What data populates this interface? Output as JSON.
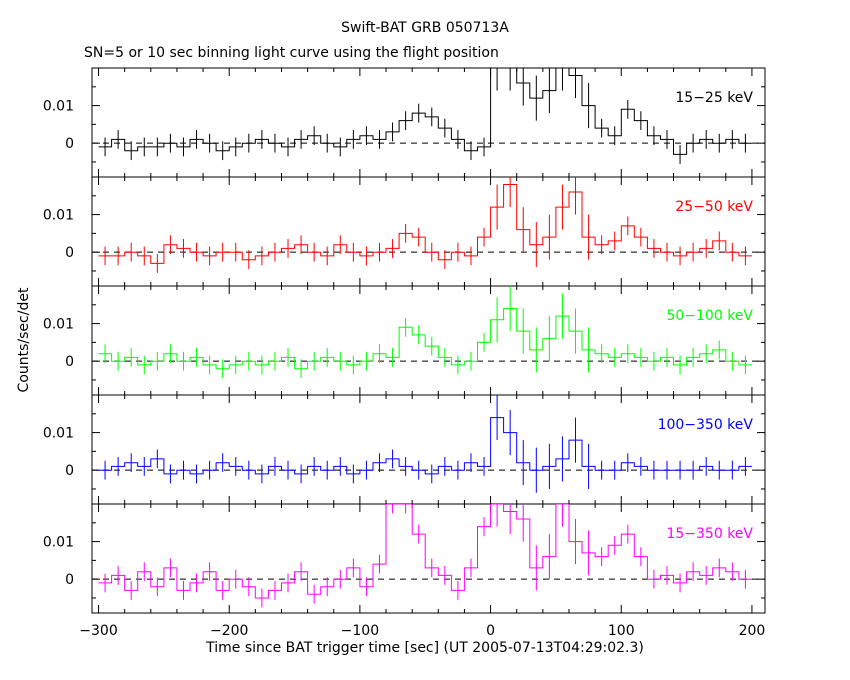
{
  "header": {
    "title": "Swift-BAT GRB 050713A",
    "subtitle": "SN=5 or 10 sec binning light curve using the flight position"
  },
  "axes": {
    "ylabel": "Counts/sec/det",
    "xlabel": "Time since BAT trigger time [sec] (UT 2005-07-13T04:29:02.3)"
  },
  "chart_data": {
    "type": "line",
    "title": "Swift-BAT GRB 050713A",
    "subtitle": "SN=5 or 10 sec binning light curve using the flight position",
    "xlabel": "Time since BAT trigger time [sec] (UT 2005-07-13T04:29:02.3)",
    "ylabel": "Counts/sec/det",
    "xlim": [
      -305,
      210
    ],
    "x_ticks": [
      -300,
      -200,
      -100,
      0,
      100,
      200
    ],
    "y_ticks": [
      0,
      0.01
    ],
    "zero_line": "dashed",
    "panels": [
      {
        "name": "15−25 keV",
        "color": "#000000",
        "ylim": [
          -0.009,
          0.02
        ],
        "bins": [
          [
            -295,
            -0.001
          ],
          [
            -285,
            0.001
          ],
          [
            -275,
            -0.002
          ],
          [
            -265,
            -0.001
          ],
          [
            -255,
            -0.001
          ],
          [
            -245,
            0.0
          ],
          [
            -235,
            -0.001
          ],
          [
            -225,
            0.001
          ],
          [
            -215,
            0.0
          ],
          [
            -205,
            -0.002
          ],
          [
            -195,
            -0.001
          ],
          [
            -185,
            0.0
          ],
          [
            -175,
            0.001
          ],
          [
            -165,
            0.0
          ],
          [
            -155,
            -0.001
          ],
          [
            -145,
            0.001
          ],
          [
            -135,
            0.002
          ],
          [
            -125,
            0.0
          ],
          [
            -115,
            -0.001
          ],
          [
            -105,
            0.001
          ],
          [
            -95,
            0.002
          ],
          [
            -85,
            0.001
          ],
          [
            -75,
            0.003
          ],
          [
            -65,
            0.006
          ],
          [
            -55,
            0.008
          ],
          [
            -45,
            0.007
          ],
          [
            -35,
            0.004
          ],
          [
            -25,
            0.001
          ],
          [
            -15,
            -0.002
          ],
          [
            -5,
            -0.001
          ],
          [
            5,
            0.02
          ],
          [
            15,
            0.02
          ],
          [
            25,
            0.016
          ],
          [
            35,
            0.012
          ],
          [
            45,
            0.014
          ],
          [
            55,
            0.02
          ],
          [
            65,
            0.018
          ],
          [
            75,
            0.01
          ],
          [
            85,
            0.004
          ],
          [
            95,
            0.002
          ],
          [
            105,
            0.009
          ],
          [
            115,
            0.006
          ],
          [
            125,
            0.002
          ],
          [
            135,
            0.001
          ],
          [
            145,
            -0.003
          ],
          [
            155,
            0.0
          ],
          [
            165,
            0.001
          ],
          [
            175,
            0.0
          ],
          [
            185,
            0.001
          ],
          [
            195,
            0.0
          ]
        ]
      },
      {
        "name": "25−50 keV",
        "color": "#ff0000",
        "ylim": [
          -0.009,
          0.02
        ],
        "bins": [
          [
            -295,
            -0.001
          ],
          [
            -285,
            -0.001
          ],
          [
            -275,
            0.0
          ],
          [
            -265,
            -0.001
          ],
          [
            -255,
            -0.003
          ],
          [
            -245,
            0.002
          ],
          [
            -235,
            0.001
          ],
          [
            -225,
            0.0
          ],
          [
            -215,
            -0.001
          ],
          [
            -205,
            0.0
          ],
          [
            -195,
            0.0
          ],
          [
            -185,
            -0.002
          ],
          [
            -175,
            -0.001
          ],
          [
            -165,
            0.0
          ],
          [
            -155,
            0.001
          ],
          [
            -145,
            0.002
          ],
          [
            -135,
            0.0
          ],
          [
            -125,
            -0.001
          ],
          [
            -115,
            0.002
          ],
          [
            -105,
            0.0
          ],
          [
            -95,
            -0.001
          ],
          [
            -85,
            0.0
          ],
          [
            -75,
            0.001
          ],
          [
            -65,
            0.005
          ],
          [
            -55,
            0.004
          ],
          [
            -45,
            0.0
          ],
          [
            -35,
            -0.002
          ],
          [
            -25,
            0.0
          ],
          [
            -15,
            -0.001
          ],
          [
            -5,
            0.004
          ],
          [
            5,
            0.012
          ],
          [
            15,
            0.018
          ],
          [
            25,
            0.006
          ],
          [
            35,
            0.002
          ],
          [
            45,
            0.004
          ],
          [
            55,
            0.012
          ],
          [
            65,
            0.016
          ],
          [
            75,
            0.004
          ],
          [
            85,
            0.002
          ],
          [
            95,
            0.003
          ],
          [
            105,
            0.007
          ],
          [
            115,
            0.004
          ],
          [
            125,
            0.001
          ],
          [
            135,
            0.0
          ],
          [
            145,
            -0.001
          ],
          [
            155,
            0.0
          ],
          [
            165,
            0.001
          ],
          [
            175,
            0.003
          ],
          [
            185,
            0.0
          ],
          [
            195,
            -0.001
          ]
        ]
      },
      {
        "name": "50−100 keV",
        "color": "#00ff00",
        "ylim": [
          -0.009,
          0.02
        ],
        "bins": [
          [
            -295,
            0.002
          ],
          [
            -285,
            0.0
          ],
          [
            -275,
            0.001
          ],
          [
            -265,
            -0.001
          ],
          [
            -255,
            0.0
          ],
          [
            -245,
            0.002
          ],
          [
            -235,
            0.0
          ],
          [
            -225,
            0.001
          ],
          [
            -215,
            -0.001
          ],
          [
            -205,
            -0.002
          ],
          [
            -195,
            -0.001
          ],
          [
            -185,
            0.0
          ],
          [
            -175,
            -0.001
          ],
          [
            -165,
            0.0
          ],
          [
            -155,
            0.001
          ],
          [
            -145,
            -0.002
          ],
          [
            -135,
            0.0
          ],
          [
            -125,
            0.001
          ],
          [
            -115,
            0.0
          ],
          [
            -105,
            -0.001
          ],
          [
            -95,
            0.0
          ],
          [
            -85,
            0.002
          ],
          [
            -75,
            0.001
          ],
          [
            -65,
            0.009
          ],
          [
            -55,
            0.007
          ],
          [
            -45,
            0.004
          ],
          [
            -35,
            0.001
          ],
          [
            -25,
            -0.001
          ],
          [
            -15,
            0.0
          ],
          [
            -5,
            0.005
          ],
          [
            5,
            0.011
          ],
          [
            15,
            0.014
          ],
          [
            25,
            0.008
          ],
          [
            35,
            0.003
          ],
          [
            45,
            0.006
          ],
          [
            55,
            0.012
          ],
          [
            65,
            0.008
          ],
          [
            75,
            0.003
          ],
          [
            85,
            0.002
          ],
          [
            95,
            0.001
          ],
          [
            105,
            0.002
          ],
          [
            115,
            0.001
          ],
          [
            125,
            0.0
          ],
          [
            135,
            0.001
          ],
          [
            145,
            -0.001
          ],
          [
            155,
            0.001
          ],
          [
            165,
            0.002
          ],
          [
            175,
            0.003
          ],
          [
            185,
            0.0
          ],
          [
            195,
            -0.001
          ]
        ]
      },
      {
        "name": "100−350 keV",
        "color": "#0000ff",
        "ylim": [
          -0.009,
          0.02
        ],
        "bins": [
          [
            -295,
            0.0
          ],
          [
            -285,
            0.001
          ],
          [
            -275,
            0.002
          ],
          [
            -265,
            0.001
          ],
          [
            -255,
            0.003
          ],
          [
            -245,
            -0.001
          ],
          [
            -235,
            0.0
          ],
          [
            -225,
            -0.001
          ],
          [
            -215,
            0.0
          ],
          [
            -205,
            0.002
          ],
          [
            -195,
            0.001
          ],
          [
            -185,
            0.0
          ],
          [
            -175,
            -0.001
          ],
          [
            -165,
            0.001
          ],
          [
            -155,
            0.0
          ],
          [
            -145,
            -0.001
          ],
          [
            -135,
            0.001
          ],
          [
            -125,
            0.0
          ],
          [
            -115,
            0.001
          ],
          [
            -105,
            -0.001
          ],
          [
            -95,
            0.0
          ],
          [
            -85,
            0.002
          ],
          [
            -75,
            0.003
          ],
          [
            -65,
            0.001
          ],
          [
            -55,
            0.0
          ],
          [
            -45,
            -0.001
          ],
          [
            -35,
            0.001
          ],
          [
            -25,
            0.0
          ],
          [
            -15,
            0.002
          ],
          [
            -5,
            0.001
          ],
          [
            5,
            0.014
          ],
          [
            15,
            0.01
          ],
          [
            25,
            0.002
          ],
          [
            35,
            0.0
          ],
          [
            45,
            0.001
          ],
          [
            55,
            0.003
          ],
          [
            65,
            0.008
          ],
          [
            75,
            0.001
          ],
          [
            85,
            0.0
          ],
          [
            95,
            0.0
          ],
          [
            105,
            0.002
          ],
          [
            115,
            0.001
          ],
          [
            125,
            0.0
          ],
          [
            135,
            0.0
          ],
          [
            145,
            0.0
          ],
          [
            155,
            0.0
          ],
          [
            165,
            0.001
          ],
          [
            175,
            0.0
          ],
          [
            185,
            0.0
          ],
          [
            195,
            0.001
          ]
        ]
      },
      {
        "name": "15−350 keV",
        "color": "#ff00ff",
        "ylim": [
          -0.009,
          0.02
        ],
        "bins": [
          [
            -295,
            -0.001
          ],
          [
            -285,
            0.001
          ],
          [
            -275,
            -0.003
          ],
          [
            -265,
            0.002
          ],
          [
            -255,
            -0.002
          ],
          [
            -245,
            0.003
          ],
          [
            -235,
            -0.003
          ],
          [
            -225,
            -0.001
          ],
          [
            -215,
            0.002
          ],
          [
            -205,
            -0.003
          ],
          [
            -195,
            0.0
          ],
          [
            -185,
            -0.002
          ],
          [
            -175,
            -0.005
          ],
          [
            -165,
            -0.003
          ],
          [
            -155,
            -0.001
          ],
          [
            -145,
            0.002
          ],
          [
            -135,
            -0.004
          ],
          [
            -125,
            -0.002
          ],
          [
            -115,
            0.0
          ],
          [
            -105,
            0.003
          ],
          [
            -95,
            -0.002
          ],
          [
            -85,
            0.004
          ],
          [
            -75,
            0.02
          ],
          [
            -65,
            0.02
          ],
          [
            -55,
            0.012
          ],
          [
            -45,
            0.003
          ],
          [
            -35,
            0.001
          ],
          [
            -25,
            -0.003
          ],
          [
            -15,
            0.003
          ],
          [
            -5,
            0.014
          ],
          [
            5,
            0.02
          ],
          [
            15,
            0.018
          ],
          [
            25,
            0.016
          ],
          [
            35,
            0.003
          ],
          [
            45,
            0.006
          ],
          [
            55,
            0.02
          ],
          [
            65,
            0.01
          ],
          [
            75,
            0.007
          ],
          [
            85,
            0.006
          ],
          [
            95,
            0.009
          ],
          [
            105,
            0.012
          ],
          [
            115,
            0.006
          ],
          [
            125,
            0.0
          ],
          [
            135,
            0.001
          ],
          [
            145,
            -0.001
          ],
          [
            155,
            0.002
          ],
          [
            165,
            0.001
          ],
          [
            175,
            0.003
          ],
          [
            185,
            0.002
          ],
          [
            195,
            0.0
          ]
        ]
      }
    ]
  }
}
